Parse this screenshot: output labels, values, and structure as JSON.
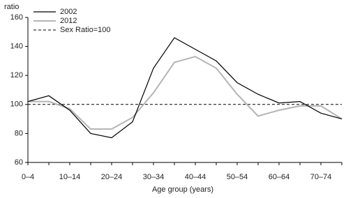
{
  "chart_data": {
    "type": "line",
    "y_label": "ratio",
    "x_label": "Age group (years)",
    "categories": [
      "0–4",
      null,
      "10–14",
      null,
      "20–24",
      null,
      "30–34",
      null,
      "40–44",
      null,
      "50–54",
      null,
      "60–64",
      null,
      "70–74",
      null
    ],
    "series": [
      {
        "name": "2002",
        "color": "#000000",
        "values": [
          102,
          106,
          96,
          80,
          77,
          88,
          125,
          146,
          138,
          130,
          115,
          107,
          101,
          102,
          94,
          90
        ]
      },
      {
        "name": "2012",
        "color": "#b4b4b4",
        "values": [
          102,
          102,
          97,
          83,
          83,
          91,
          108,
          129,
          133,
          125,
          107,
          92,
          96,
          99,
          99,
          90
        ]
      }
    ],
    "reference_line": {
      "name": "Sex Ratio=100",
      "value": 100,
      "color": "#000000"
    },
    "ylim": [
      60,
      160
    ],
    "yticks": [
      60,
      80,
      100,
      120,
      140,
      160
    ]
  }
}
